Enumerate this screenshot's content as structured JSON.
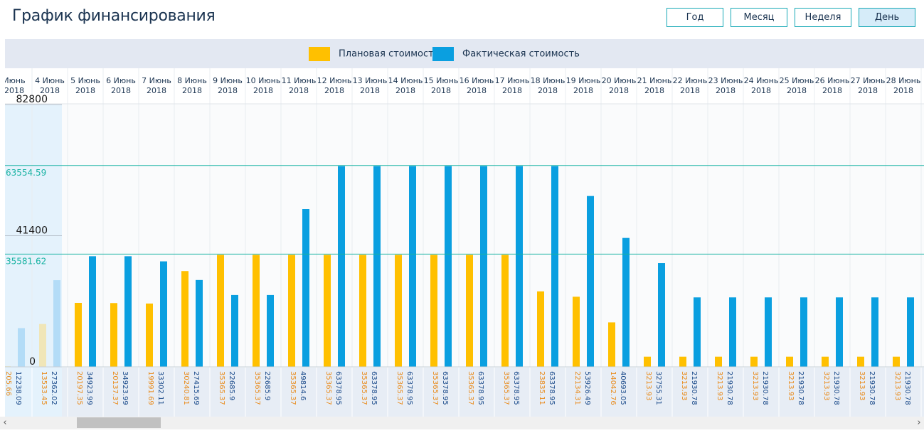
{
  "title": "График финансирования",
  "period_buttons": [
    {
      "label": "Год",
      "active": false
    },
    {
      "label": "Месяц",
      "active": false
    },
    {
      "label": "Неделя",
      "active": false
    },
    {
      "label": "День",
      "active": true
    }
  ],
  "legend": {
    "planned": {
      "label": "Плановая стоимость",
      "color": "#ffc000"
    },
    "actual": {
      "label": "Фактическая стоимость",
      "color": "#0a9fe0"
    }
  },
  "colors": {
    "planned_faded": "#f0e6b8",
    "actual_faded": "#b3dcf7",
    "reference_line": "#1ab3a3",
    "planned_value_text": "#e88a1a",
    "actual_value_text": "#1a4a8a"
  },
  "chart_data": {
    "type": "bar",
    "categories": [
      {
        "line1": "Июнь",
        "line2": "2018"
      },
      {
        "line1": "4 Июнь",
        "line2": "2018"
      },
      {
        "line1": "5 Июнь",
        "line2": "2018"
      },
      {
        "line1": "6 Июнь",
        "line2": "2018"
      },
      {
        "line1": "7 Июнь",
        "line2": "2018"
      },
      {
        "line1": "8 Июнь",
        "line2": "2018"
      },
      {
        "line1": "9 Июнь",
        "line2": "2018"
      },
      {
        "line1": "10 Июнь",
        "line2": "2018"
      },
      {
        "line1": "11 Июнь",
        "line2": "2018"
      },
      {
        "line1": "12 Июнь",
        "line2": "2018"
      },
      {
        "line1": "13 Июнь",
        "line2": "2018"
      },
      {
        "line1": "14 Июнь",
        "line2": "2018"
      },
      {
        "line1": "15 Июнь",
        "line2": "2018"
      },
      {
        "line1": "16 Июнь",
        "line2": "2018"
      },
      {
        "line1": "17 Июнь",
        "line2": "2018"
      },
      {
        "line1": "18 Июнь",
        "line2": "2018"
      },
      {
        "line1": "19 Июнь",
        "line2": "2018"
      },
      {
        "line1": "20 Июнь",
        "line2": "2018"
      },
      {
        "line1": "21 Июнь",
        "line2": "2018"
      },
      {
        "line1": "22 Июнь",
        "line2": "2018"
      },
      {
        "line1": "23 Июнь",
        "line2": "2018"
      },
      {
        "line1": "24 Июнь",
        "line2": "2018"
      },
      {
        "line1": "25 Июнь",
        "line2": "2018"
      },
      {
        "line1": "26 Июнь",
        "line2": "2018"
      },
      {
        "line1": "27 Июнь",
        "line2": "2018"
      },
      {
        "line1": "28 Июнь",
        "line2": "2018"
      }
    ],
    "series": [
      {
        "name": "Плановая стоимость",
        "values": [
          205.66,
          13533.45,
          20197.35,
          20137.37,
          19991.69,
          30240.81,
          35365.37,
          35365.37,
          35365.37,
          35365.37,
          35365.37,
          35365.37,
          35365.37,
          35365.37,
          35365.37,
          23835.11,
          22134.31,
          14042.76,
          3213.93,
          3213.93,
          3213.93,
          3213.93,
          3213.93,
          3213.93,
          3213.93,
          3213.93
        ]
      },
      {
        "name": "Фактическая стоимость",
        "values": [
          12238.09,
          27362.02,
          34923.99,
          34923.99,
          33302.11,
          27415.69,
          22685.9,
          22685.9,
          49814.6,
          63378.95,
          63378.95,
          63378.95,
          63378.95,
          63378.95,
          63378.95,
          63378.95,
          53926.49,
          40693.05,
          32755.31,
          21930.78,
          21930.78,
          21930.78,
          21930.78,
          21930.78,
          21930.78,
          21930.78
        ]
      }
    ],
    "value_labels": {
      "planned": [
        "205.66",
        "13533.45",
        "20197.35",
        "20137.37",
        "19991.69",
        "30240.81",
        "35365.37",
        "35365.37",
        "35365.37",
        "35365.37",
        "35365.37",
        "35365.37",
        "35365.37",
        "35365.37",
        "35365.37",
        "23835.11",
        "22134.31",
        "14042.76",
        "3213.93",
        "3213.93",
        "3213.93",
        "3213.93",
        "3213.93",
        "3213.93",
        "3213.93",
        "3213.93"
      ],
      "actual": [
        "12238.09",
        "27362.02",
        "34923.99",
        "34923.99",
        "33302.11",
        "27415.69",
        "22685.9",
        "22685.9",
        "49814.6",
        "63378.95",
        "63378.95",
        "63378.95",
        "63378.95",
        "63378.95",
        "63378.95",
        "63378.95",
        "53926.49",
        "40693.05",
        "32755.31",
        "21930.78",
        "21930.78",
        "21930.78",
        "21930.78",
        "21930.78",
        "21930.78",
        "21930.78"
      ]
    },
    "highlighted_categories": [
      0,
      1
    ],
    "y_ticks": [
      {
        "value": 0,
        "label": "0"
      },
      {
        "value": 41400,
        "label": "41400"
      },
      {
        "value": 82800,
        "label": "82800"
      }
    ],
    "reference_lines": [
      {
        "value": 63554.59,
        "label": "63554.59"
      },
      {
        "value": 35581.62,
        "label": "35581.62"
      }
    ],
    "ylim": [
      0,
      82800
    ],
    "legend_position": "top-center",
    "grid": true
  }
}
